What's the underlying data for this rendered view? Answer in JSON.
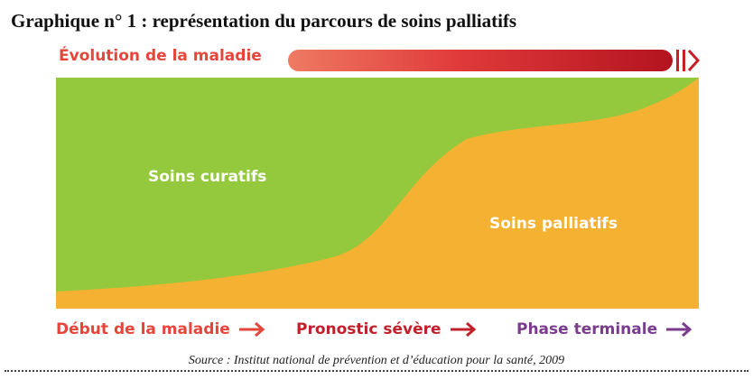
{
  "title": "Graphique n° 1 : représentation du parcours de soins palliatifs",
  "evolution_label": "Évolution de la maladie",
  "areas": {
    "curative_label": "Soins curatifs",
    "palliative_label": "Soins palliatifs"
  },
  "stages": [
    {
      "label": "Début de la maladie",
      "color": "#e5453b"
    },
    {
      "label": "Pronostic sévère",
      "color": "#c0202a"
    },
    {
      "label": "Phase terminale",
      "color": "#7b3b8e"
    }
  ],
  "colors": {
    "curative": "#95c93d",
    "palliative": "#f5b131",
    "gradient_start": "#ee7a62",
    "gradient_end": "#b3141f"
  },
  "source": "Source : Institut national de prévention et d’éducation pour la santé, 2009"
}
